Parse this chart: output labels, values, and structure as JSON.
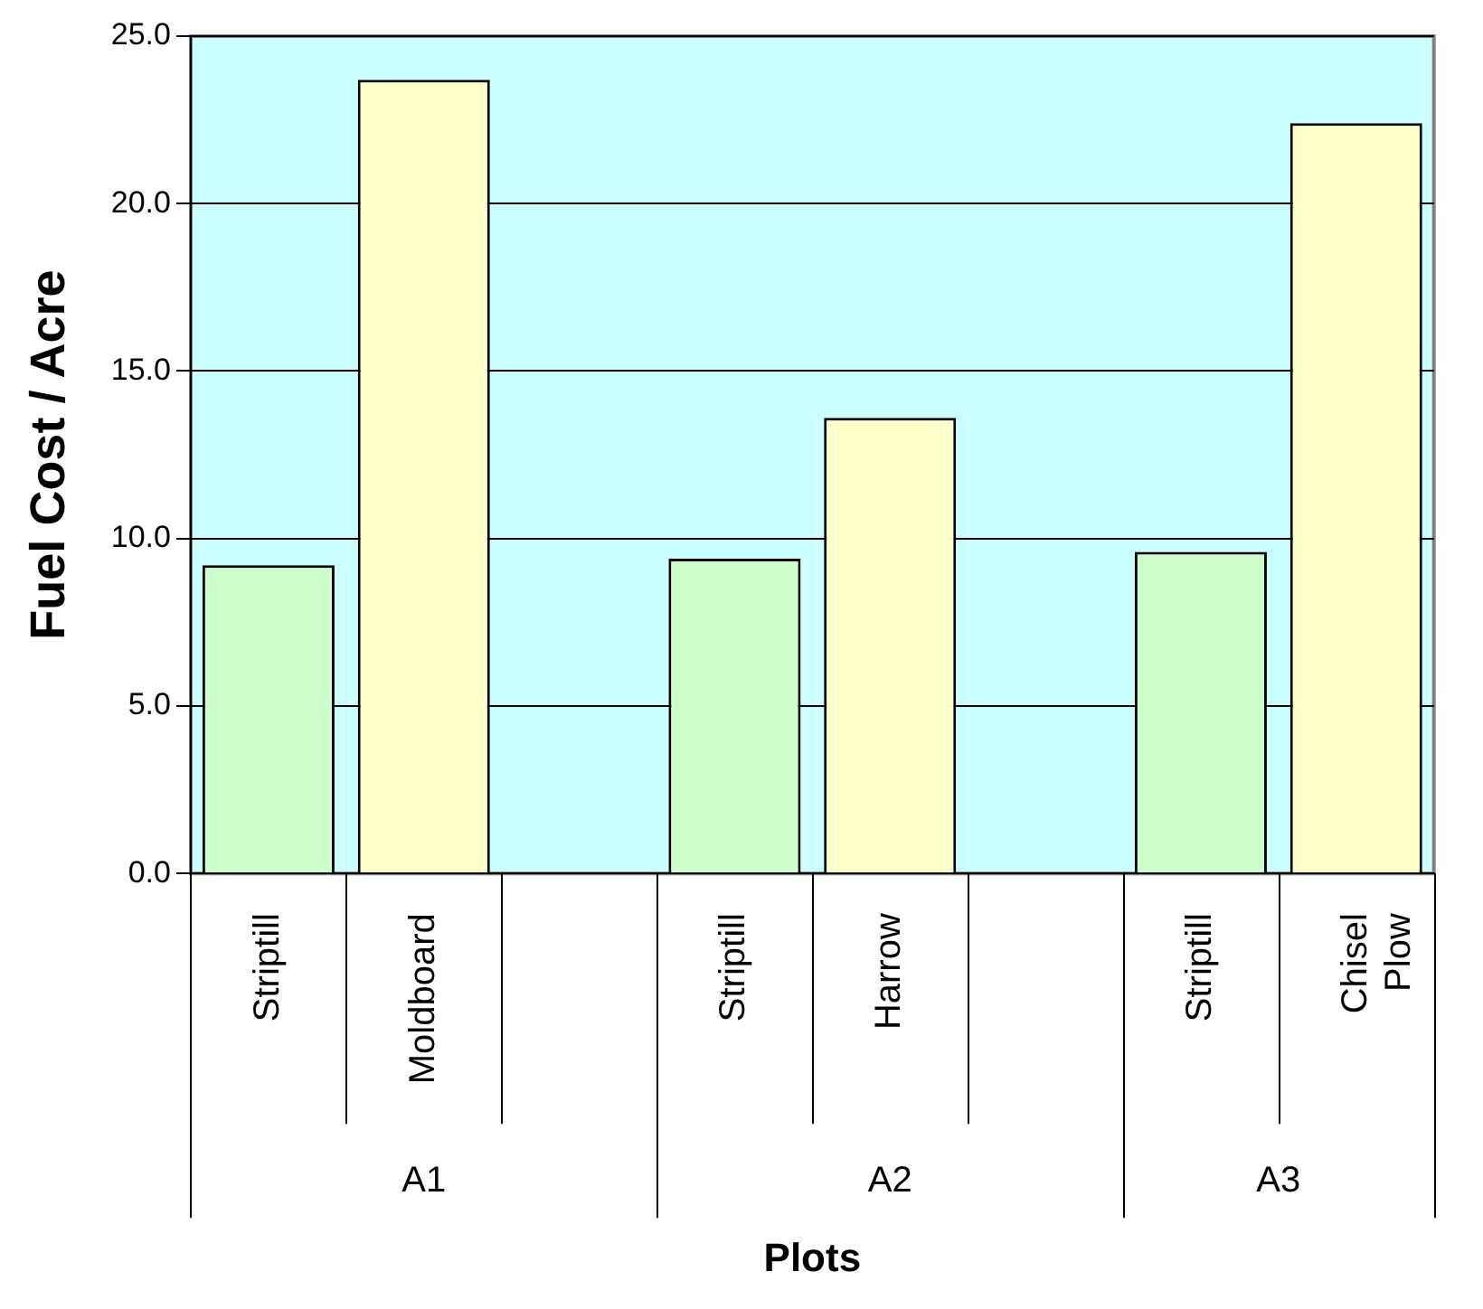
{
  "chart_data": {
    "type": "bar",
    "xlabel": "Plots",
    "ylabel": "Fuel Cost / Acre",
    "categories": [
      "Striptill",
      "Moldboard",
      null,
      "Striptill",
      "Harrow",
      null,
      "Striptill",
      "Chisel Plow"
    ],
    "values": [
      9.2,
      23.7,
      null,
      9.4,
      13.6,
      null,
      9.6,
      22.4
    ],
    "colors": [
      "#ccffcc",
      "#ffffcc",
      "#ccffcc",
      "#ccffcc",
      "#ffffcc",
      "#ccffcc",
      "#ccffcc",
      "#ffffcc"
    ],
    "annotations": [
      "A1",
      "A2",
      "A3"
    ],
    "ylim": [
      0,
      25
    ],
    "yticks": [
      {
        "value": 0,
        "label": "0.0"
      },
      {
        "value": 5,
        "label": "5.0"
      },
      {
        "value": 10,
        "label": "10.0"
      },
      {
        "value": 15,
        "label": "15.0"
      },
      {
        "value": 20,
        "label": "20.0"
      },
      {
        "value": 25,
        "label": "25.0"
      }
    ],
    "grid": "y",
    "legend": false
  }
}
